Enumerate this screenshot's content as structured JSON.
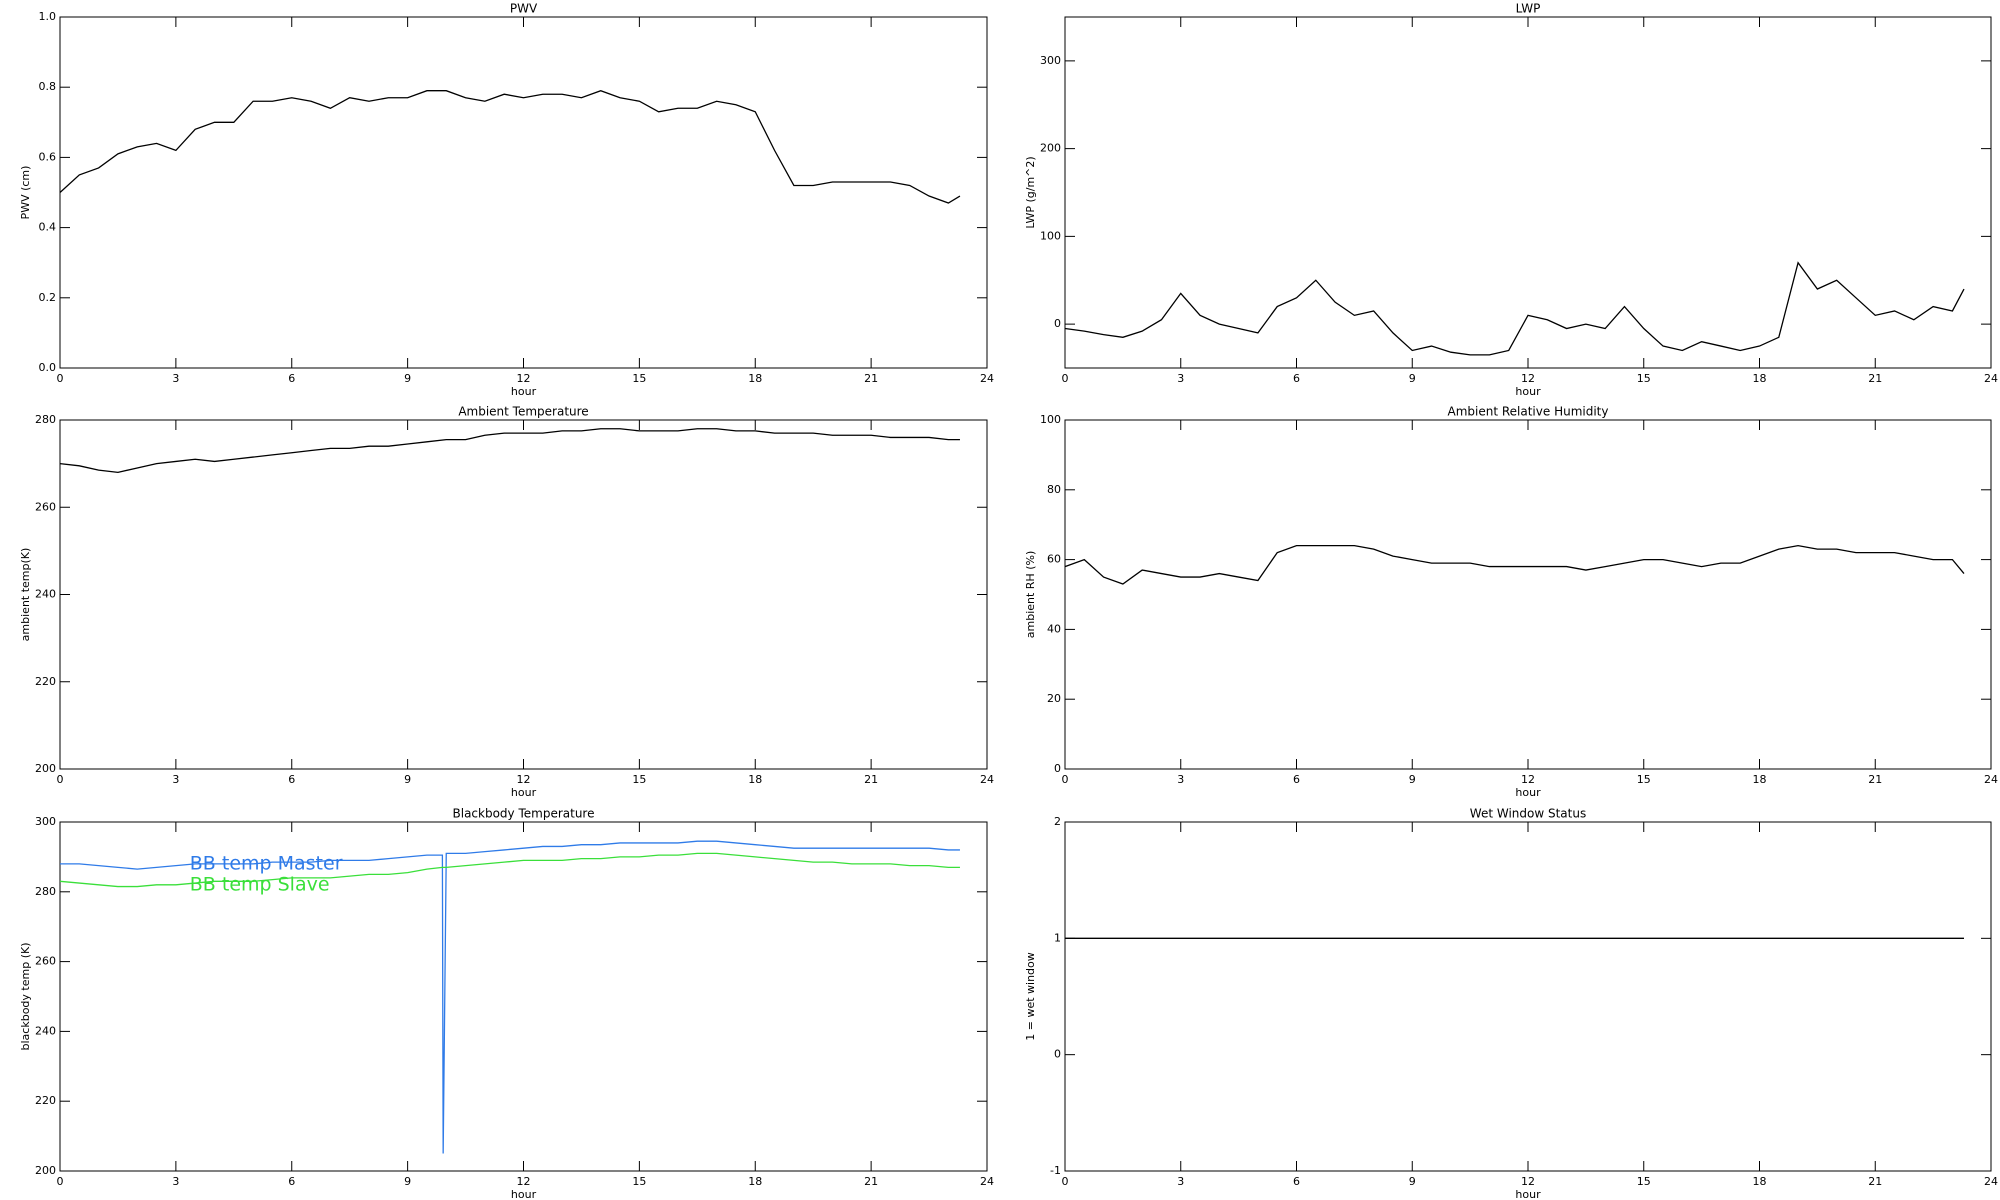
{
  "chart_data": [
    {
      "type": "line",
      "title": "PWV",
      "xlabel": "hour",
      "ylabel": "PWV (cm)",
      "x": [
        0,
        0.5,
        1,
        1.5,
        2,
        2.5,
        3,
        3.5,
        4,
        4.5,
        5,
        5.5,
        6,
        6.5,
        7,
        7.5,
        8,
        8.5,
        9,
        9.5,
        10,
        10.5,
        11,
        11.5,
        12,
        12.5,
        13,
        13.5,
        14,
        14.5,
        15,
        15.5,
        16,
        16.5,
        17,
        17.5,
        18,
        18.5,
        19,
        19.5,
        20,
        20.5,
        21,
        21.5,
        22,
        22.5,
        23,
        23.3
      ],
      "series": [
        {
          "color": "#000000",
          "values": [
            0.5,
            0.55,
            0.57,
            0.61,
            0.63,
            0.64,
            0.62,
            0.68,
            0.7,
            0.7,
            0.76,
            0.76,
            0.77,
            0.76,
            0.74,
            0.77,
            0.76,
            0.77,
            0.77,
            0.79,
            0.79,
            0.77,
            0.76,
            0.78,
            0.77,
            0.78,
            0.78,
            0.77,
            0.79,
            0.77,
            0.76,
            0.73,
            0.74,
            0.74,
            0.76,
            0.75,
            0.73,
            0.62,
            0.52,
            0.52,
            0.53,
            0.53,
            0.53,
            0.53,
            0.52,
            0.49,
            0.47,
            0.49
          ]
        }
      ],
      "xlim": [
        0,
        24
      ],
      "xticks": [
        0,
        3,
        6,
        9,
        12,
        15,
        18,
        21,
        24
      ],
      "ylim": [
        0,
        1
      ],
      "yticks": [
        {
          "value": 0,
          "label": "0.0"
        },
        0.2,
        0.4,
        0.6,
        0.8,
        {
          "value": 1,
          "label": "1.0"
        }
      ]
    },
    {
      "type": "line",
      "title": "LWP",
      "xlabel": "hour",
      "ylabel": "LWP (g/m^2)",
      "x": [
        0,
        0.5,
        1,
        1.5,
        2,
        2.5,
        3,
        3.5,
        4,
        4.5,
        5,
        5.5,
        6,
        6.5,
        7,
        7.5,
        8,
        8.5,
        9,
        9.5,
        10,
        10.5,
        11,
        11.5,
        12,
        12.5,
        13,
        13.5,
        14,
        14.5,
        15,
        15.5,
        16,
        16.5,
        17,
        17.5,
        18,
        18.5,
        19,
        19.5,
        20,
        20.5,
        21,
        21.5,
        22,
        22.5,
        23,
        23.3
      ],
      "series": [
        {
          "color": "#000000",
          "values": [
            -5,
            -8,
            -12,
            -15,
            -8,
            5,
            35,
            10,
            0,
            -5,
            -10,
            20,
            30,
            50,
            25,
            10,
            15,
            -10,
            -30,
            -25,
            -32,
            -35,
            -35,
            -30,
            10,
            5,
            -5,
            0,
            -5,
            20,
            -5,
            -25,
            -30,
            -20,
            -25,
            -30,
            -25,
            -15,
            70,
            40,
            50,
            30,
            10,
            15,
            5,
            20,
            15,
            40
          ]
        }
      ],
      "xlim": [
        0,
        24
      ],
      "xticks": [
        0,
        3,
        6,
        9,
        12,
        15,
        18,
        21,
        24
      ],
      "ylim": [
        -50,
        350
      ],
      "yticks": [
        0,
        100,
        200,
        300
      ]
    },
    {
      "type": "line",
      "title": "Ambient Temperature",
      "xlabel": "hour",
      "ylabel": "ambient temp(K)",
      "x": [
        0,
        0.5,
        1,
        1.5,
        2,
        2.5,
        3,
        3.5,
        4,
        4.5,
        5,
        5.5,
        6,
        6.5,
        7,
        7.5,
        8,
        8.5,
        9,
        9.5,
        10,
        10.5,
        11,
        11.5,
        12,
        12.5,
        13,
        13.5,
        14,
        14.5,
        15,
        15.5,
        16,
        16.5,
        17,
        17.5,
        18,
        18.5,
        19,
        19.5,
        20,
        20.5,
        21,
        21.5,
        22,
        22.5,
        23,
        23.3
      ],
      "series": [
        {
          "color": "#000000",
          "values": [
            270,
            269.5,
            268.5,
            268,
            269,
            270,
            270.5,
            271,
            270.5,
            271,
            271.5,
            272,
            272.5,
            273,
            273.5,
            273.5,
            274,
            274,
            274.5,
            275,
            275.5,
            275.5,
            276.5,
            277,
            277,
            277,
            277.5,
            277.5,
            278,
            278,
            277.5,
            277.5,
            277.5,
            278,
            278,
            277.5,
            277.5,
            277,
            277,
            277,
            276.5,
            276.5,
            276.5,
            276,
            276,
            276,
            275.5,
            275.5
          ]
        }
      ],
      "xlim": [
        0,
        24
      ],
      "xticks": [
        0,
        3,
        6,
        9,
        12,
        15,
        18,
        21,
        24
      ],
      "ylim": [
        200,
        280
      ],
      "yticks": [
        200,
        220,
        240,
        260,
        280
      ]
    },
    {
      "type": "line",
      "title": "Ambient Relative Humidity",
      "xlabel": "hour",
      "ylabel": "ambient RH (%)",
      "x": [
        0,
        0.5,
        1,
        1.5,
        2,
        2.5,
        3,
        3.5,
        4,
        4.5,
        5,
        5.5,
        6,
        6.5,
        7,
        7.5,
        8,
        8.5,
        9,
        9.5,
        10,
        10.5,
        11,
        11.5,
        12,
        12.5,
        13,
        13.5,
        14,
        14.5,
        15,
        15.5,
        16,
        16.5,
        17,
        17.5,
        18,
        18.5,
        19,
        19.5,
        20,
        20.5,
        21,
        21.5,
        22,
        22.5,
        23,
        23.3
      ],
      "series": [
        {
          "color": "#000000",
          "values": [
            58,
            60,
            55,
            53,
            57,
            56,
            55,
            55,
            56,
            55,
            54,
            62,
            64,
            64,
            64,
            64,
            63,
            61,
            60,
            59,
            59,
            59,
            58,
            58,
            58,
            58,
            58,
            57,
            58,
            59,
            60,
            60,
            59,
            58,
            59,
            59,
            61,
            63,
            64,
            63,
            63,
            62,
            62,
            62,
            61,
            60,
            60,
            56
          ]
        }
      ],
      "xlim": [
        0,
        24
      ],
      "xticks": [
        0,
        3,
        6,
        9,
        12,
        15,
        18,
        21,
        24
      ],
      "ylim": [
        0,
        100
      ],
      "yticks": [
        0,
        20,
        40,
        60,
        80,
        100
      ]
    },
    {
      "type": "line",
      "title": "Blackbody Temperature",
      "xlabel": "hour",
      "ylabel": "blackbody temp (K)",
      "legend": "upper left",
      "x": [
        0,
        0.5,
        1,
        1.5,
        2,
        2.5,
        3,
        3.5,
        4,
        4.5,
        5,
        5.5,
        6,
        6.5,
        7,
        7.5,
        8,
        8.5,
        9,
        9.5,
        9.9,
        9.92,
        10,
        10.5,
        11,
        11.5,
        12,
        12.5,
        13,
        13.5,
        14,
        14.5,
        15,
        15.5,
        16,
        16.5,
        17,
        17.5,
        18,
        18.5,
        19,
        19.5,
        20,
        20.5,
        21,
        21.5,
        22,
        22.5,
        23,
        23.3
      ],
      "series": [
        {
          "name": "BB temp Master",
          "color": "#2f7be8",
          "values": [
            288,
            288,
            287.5,
            287,
            286.5,
            287,
            287.5,
            288,
            288,
            288,
            288,
            288.5,
            288.5,
            288.5,
            289,
            289,
            289,
            289.5,
            290,
            290.5,
            290.5,
            205,
            291,
            291,
            291.5,
            292,
            292.5,
            293,
            293,
            293.5,
            293.5,
            294,
            294,
            294,
            294,
            294.5,
            294.5,
            294,
            293.5,
            293,
            292.5,
            292.5,
            292.5,
            292.5,
            292.5,
            292.5,
            292.5,
            292.5,
            292,
            292
          ]
        },
        {
          "name": "BB temp Slave",
          "color": "#3adf3a",
          "values": [
            283,
            282.5,
            282,
            281.5,
            281.5,
            282,
            282,
            282.5,
            283,
            283,
            283,
            283.5,
            284,
            284,
            284,
            284.5,
            285,
            285,
            285.5,
            286.5,
            287,
            287,
            287,
            287.5,
            288,
            288.5,
            289,
            289,
            289,
            289.5,
            289.5,
            290,
            290,
            290.5,
            290.5,
            291,
            291,
            290.5,
            290,
            289.5,
            289,
            288.5,
            288.5,
            288,
            288,
            288,
            287.5,
            287.5,
            287,
            287
          ]
        }
      ],
      "xlim": [
        0,
        24
      ],
      "xticks": [
        0,
        3,
        6,
        9,
        12,
        15,
        18,
        21,
        24
      ],
      "ylim": [
        200,
        300
      ],
      "yticks": [
        200,
        220,
        240,
        260,
        280,
        300
      ]
    },
    {
      "type": "line",
      "title": "Wet Window Status",
      "xlabel": "hour",
      "ylabel": "1 = wet window",
      "x": [
        0,
        23.3
      ],
      "series": [
        {
          "color": "#000000",
          "values": [
            1,
            1
          ]
        }
      ],
      "xlim": [
        0,
        24
      ],
      "xticks": [
        0,
        3,
        6,
        9,
        12,
        15,
        18,
        21,
        24
      ],
      "ylim": [
        -1,
        2
      ],
      "yticks": [
        -1,
        0,
        1,
        2
      ]
    }
  ]
}
